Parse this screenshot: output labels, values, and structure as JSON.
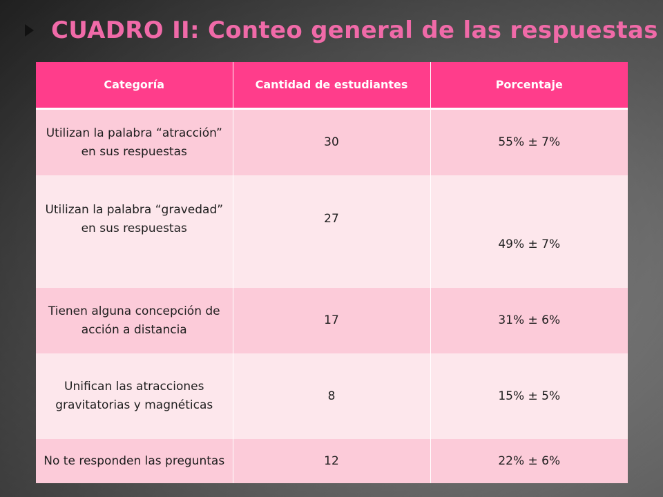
{
  "slide": {
    "title": "CUADRO II: Conteo general de las respuestas",
    "title_color": "#f06aa8",
    "accent_color": "#ff3d8b",
    "decoration_icon": "triangle-arrow-icon"
  },
  "table": {
    "headers": [
      "Categoría",
      "Cantidad de estudiantes",
      "Porcentaje"
    ],
    "rows": [
      {
        "category": "Utilizan la palabra “atracción” en sus respuestas",
        "count": "30",
        "percent": "55% ± 7%"
      },
      {
        "category": "Utilizan la palabra “gravedad” en sus respuestas",
        "count": "27",
        "percent": "49% ± 7%"
      },
      {
        "category": "Tienen alguna concepción de acción a distancia",
        "count": "17",
        "percent": "31% ± 6%"
      },
      {
        "category": "Unifican las atracciones gravitatorias y magnéticas",
        "count": "8",
        "percent": "15% ± 5%"
      },
      {
        "category": "No te responden las preguntas",
        "count": "12",
        "percent": "22% ± 6%"
      }
    ],
    "row_colors": [
      "#fccbd9",
      "#fde7ec"
    ]
  }
}
